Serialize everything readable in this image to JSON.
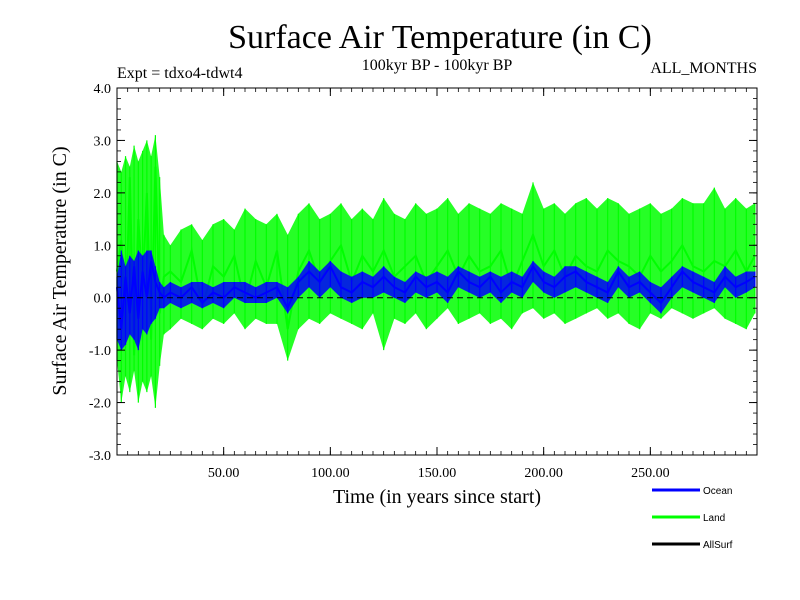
{
  "chart_data": {
    "type": "line",
    "title": "Surface Air Temperature (in C)",
    "subtitle_left": "Expt = tdxo4-tdwt4",
    "subtitle_center": "100kyr BP - 100kyr BP",
    "subtitle_right": "ALL_MONTHS",
    "xlabel": "Time (in years since start)",
    "ylabel": "Surface Air Temperature (in C)",
    "xlim": [
      0,
      300
    ],
    "ylim": [
      -3.0,
      4.0
    ],
    "x_ticks": [
      {
        "value": 50,
        "label": "50.00"
      },
      {
        "value": 100,
        "label": "100.00"
      },
      {
        "value": 150,
        "label": "150.00"
      },
      {
        "value": 200,
        "label": "200.00"
      },
      {
        "value": 250,
        "label": "250.00"
      }
    ],
    "y_ticks": [
      {
        "value": 4.0,
        "label": "4.0"
      },
      {
        "value": 3.0,
        "label": "3.0"
      },
      {
        "value": 2.0,
        "label": "2.0"
      },
      {
        "value": 1.0,
        "label": "1.0"
      },
      {
        "value": 0.0,
        "label": "0.0"
      },
      {
        "value": -1.0,
        "label": "-1.0"
      },
      {
        "value": -2.0,
        "label": "-2.0"
      },
      {
        "value": -3.0,
        "label": "-3.0"
      }
    ],
    "zero_line": {
      "value": 0.0,
      "style": "dashed"
    },
    "legend_placement": "bottom-right",
    "series": [
      {
        "name": "Land",
        "color": "#00ff00",
        "x": [
          0,
          2,
          4,
          6,
          8,
          10,
          12,
          14,
          16,
          18,
          20,
          22,
          25,
          30,
          35,
          40,
          45,
          50,
          55,
          60,
          65,
          70,
          75,
          80,
          85,
          90,
          95,
          100,
          105,
          110,
          115,
          120,
          125,
          130,
          135,
          140,
          145,
          150,
          155,
          160,
          165,
          170,
          175,
          180,
          185,
          190,
          195,
          200,
          205,
          210,
          215,
          220,
          225,
          230,
          235,
          240,
          245,
          250,
          255,
          260,
          265,
          270,
          275,
          280,
          285,
          290,
          295,
          299
        ],
        "values": [
          0.5,
          1.1,
          -0.6,
          2.3,
          -1.1,
          1.5,
          0.2,
          2.0,
          -0.8,
          2.5,
          -0.3,
          0.4,
          0.5,
          0.3,
          0.9,
          -0.2,
          0.6,
          0.4,
          0.8,
          -0.1,
          0.7,
          0.2,
          0.9,
          -0.6,
          0.5,
          0.9,
          0.3,
          0.7,
          1.0,
          0.3,
          0.8,
          0.5,
          0.9,
          0.4,
          0.6,
          0.8,
          0.3,
          0.6,
          0.9,
          0.4,
          0.8,
          0.5,
          0.6,
          0.9,
          0.2,
          0.7,
          1.2,
          0.6,
          0.9,
          0.4,
          0.8,
          0.6,
          0.5,
          0.9,
          0.7,
          0.6,
          0.4,
          0.8,
          0.5,
          0.7,
          1.0,
          0.6,
          0.5,
          0.7,
          0.6,
          0.9,
          0.5,
          0.8
        ],
        "envelope_high": [
          2.6,
          2.4,
          2.7,
          2.5,
          2.9,
          2.6,
          2.8,
          3.0,
          2.7,
          3.1,
          2.3,
          1.2,
          1.0,
          1.3,
          1.4,
          1.1,
          1.4,
          1.5,
          1.3,
          1.7,
          1.5,
          1.4,
          1.6,
          1.2,
          1.6,
          1.8,
          1.5,
          1.6,
          1.8,
          1.5,
          1.7,
          1.5,
          1.9,
          1.6,
          1.5,
          1.8,
          1.6,
          1.7,
          1.9,
          1.6,
          1.8,
          1.7,
          1.6,
          1.8,
          1.7,
          1.6,
          2.2,
          1.7,
          1.8,
          1.6,
          1.8,
          1.9,
          1.7,
          1.9,
          1.8,
          1.6,
          1.7,
          1.8,
          1.6,
          1.7,
          1.9,
          1.8,
          1.8,
          2.1,
          1.7,
          1.9,
          1.7,
          1.8
        ],
        "envelope_low": [
          -1.2,
          -2.0,
          -1.5,
          -1.8,
          -1.4,
          -2.0,
          -1.6,
          -1.8,
          -1.5,
          -2.1,
          -1.3,
          -0.7,
          -0.6,
          -0.4,
          -0.5,
          -0.6,
          -0.4,
          -0.5,
          -0.3,
          -0.6,
          -0.4,
          -0.5,
          -0.5,
          -1.2,
          -0.6,
          -0.4,
          -0.5,
          -0.3,
          -0.4,
          -0.5,
          -0.6,
          -0.3,
          -1.0,
          -0.4,
          -0.5,
          -0.3,
          -0.6,
          -0.4,
          -0.2,
          -0.5,
          -0.4,
          -0.3,
          -0.5,
          -0.4,
          -0.6,
          -0.3,
          -0.2,
          -0.4,
          -0.3,
          -0.5,
          -0.4,
          -0.3,
          -0.2,
          -0.4,
          -0.3,
          -0.5,
          -0.6,
          -0.3,
          -0.4,
          -0.2,
          -0.3,
          -0.4,
          -0.3,
          -0.2,
          -0.4,
          -0.5,
          -0.6,
          -0.3
        ]
      },
      {
        "name": "Ocean",
        "color": "#0000ff",
        "x": [
          0,
          2,
          4,
          6,
          8,
          10,
          12,
          14,
          16,
          18,
          20,
          22,
          25,
          30,
          35,
          40,
          45,
          50,
          55,
          60,
          65,
          70,
          75,
          80,
          85,
          90,
          95,
          100,
          105,
          110,
          115,
          120,
          125,
          130,
          135,
          140,
          145,
          150,
          155,
          160,
          165,
          170,
          175,
          180,
          185,
          190,
          195,
          200,
          205,
          210,
          215,
          220,
          225,
          230,
          235,
          240,
          245,
          250,
          255,
          260,
          265,
          270,
          275,
          280,
          285,
          290,
          295,
          299
        ],
        "values": [
          0.2,
          -0.6,
          0.4,
          -0.3,
          0.6,
          -0.4,
          0.5,
          0.0,
          0.7,
          0.3,
          0.1,
          0.0,
          0.1,
          0.0,
          0.2,
          -0.1,
          0.1,
          0.0,
          0.2,
          0.1,
          0.0,
          0.1,
          0.2,
          -0.2,
          0.3,
          0.5,
          0.3,
          0.6,
          0.2,
          0.1,
          0.3,
          0.2,
          0.4,
          0.2,
          0.1,
          0.4,
          0.2,
          0.3,
          0.1,
          0.5,
          0.3,
          0.2,
          0.4,
          0.1,
          0.3,
          0.2,
          0.6,
          0.3,
          0.2,
          0.4,
          0.5,
          0.3,
          0.2,
          0.1,
          0.5,
          0.2,
          0.3,
          0.1,
          -0.1,
          0.2,
          0.5,
          0.3,
          0.2,
          0.1,
          0.4,
          0.2,
          0.3,
          0.4
        ],
        "envelope_high": [
          0.4,
          0.9,
          0.6,
          0.8,
          0.7,
          0.9,
          0.8,
          0.9,
          0.9,
          0.6,
          0.3,
          0.2,
          0.3,
          0.2,
          0.3,
          0.3,
          0.2,
          0.3,
          0.3,
          0.3,
          0.2,
          0.3,
          0.3,
          0.2,
          0.4,
          0.7,
          0.5,
          0.7,
          0.5,
          0.4,
          0.5,
          0.4,
          0.6,
          0.4,
          0.3,
          0.5,
          0.4,
          0.5,
          0.4,
          0.6,
          0.5,
          0.4,
          0.5,
          0.4,
          0.5,
          0.4,
          0.7,
          0.5,
          0.4,
          0.6,
          0.6,
          0.5,
          0.4,
          0.3,
          0.6,
          0.4,
          0.5,
          0.3,
          0.2,
          0.4,
          0.6,
          0.5,
          0.4,
          0.3,
          0.6,
          0.4,
          0.5,
          0.5
        ],
        "envelope_low": [
          -0.8,
          -1.0,
          -0.9,
          -0.7,
          -0.8,
          -1.0,
          -0.6,
          -0.7,
          -0.5,
          -0.4,
          -0.2,
          -0.2,
          -0.1,
          -0.2,
          -0.1,
          -0.2,
          -0.1,
          -0.2,
          0.0,
          -0.1,
          -0.1,
          -0.1,
          0.0,
          -0.3,
          0.0,
          0.2,
          0.0,
          0.2,
          0.0,
          -0.1,
          0.0,
          0.0,
          0.1,
          0.0,
          -0.1,
          0.1,
          0.0,
          0.1,
          -0.1,
          0.2,
          0.1,
          0.0,
          0.1,
          -0.1,
          0.1,
          0.0,
          0.3,
          0.1,
          0.0,
          0.1,
          0.2,
          0.1,
          0.0,
          -0.1,
          0.2,
          0.0,
          0.1,
          -0.1,
          -0.3,
          0.0,
          0.2,
          0.1,
          0.0,
          -0.1,
          0.2,
          0.0,
          0.1,
          0.2
        ]
      },
      {
        "name": "AllSurf",
        "color": "#000000",
        "x": [],
        "values": []
      }
    ]
  }
}
